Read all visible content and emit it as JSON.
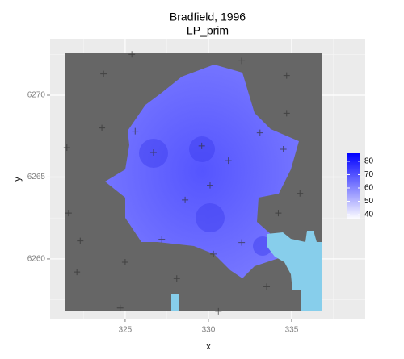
{
  "chart_data": {
    "type": "scatter",
    "title": "Bradfield, 1996",
    "subtitle": "LP_prim",
    "x_label": "x",
    "y_label": "y",
    "x": [
      325.4,
      323.7,
      321.5,
      323.6,
      325.6,
      326.7,
      329.6,
      328.6,
      330.1,
      331.2,
      334.5,
      333.1,
      334.7,
      332.0,
      335.5,
      334.2,
      327.2,
      330.3,
      332.0,
      333.5,
      325.0,
      322.3,
      322.1,
      324.7,
      330.6,
      328.1,
      321.6,
      334.7
    ],
    "y": [
      6272.5,
      6271.3,
      6266.8,
      6268.0,
      6267.8,
      6266.5,
      6266.9,
      6263.6,
      6264.5,
      6266.0,
      6266.7,
      6267.7,
      6271.2,
      6272.1,
      6264.0,
      6262.8,
      6261.2,
      6260.3,
      6261.0,
      6258.3,
      6259.8,
      6261.1,
      6259.2,
      6257.0,
      6256.8,
      6258.8,
      6262.8,
      6268.9
    ],
    "color": "#333333",
    "xlim": [
      320.49,
      339.42
    ],
    "ylim": [
      6256.35,
      6273.45
    ],
    "xticks": [
      325,
      330,
      335
    ],
    "yticks": [
      6260,
      6265,
      6270
    ],
    "grid": true,
    "colorbar": {
      "lim": [
        36.4,
        86
      ],
      "ticks": [
        40,
        50,
        60,
        70,
        80
      ],
      "colors": [
        "#ffffff",
        "#0000ff"
      ]
    }
  }
}
